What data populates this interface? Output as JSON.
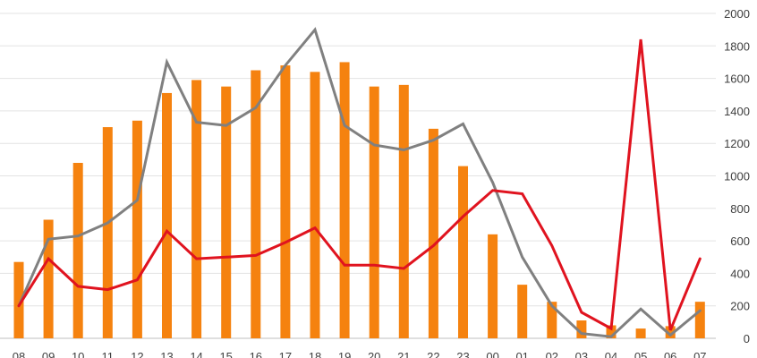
{
  "chart_data": {
    "type": "bar",
    "categories": [
      "08",
      "09",
      "10",
      "11",
      "12",
      "13",
      "14",
      "15",
      "16",
      "17",
      "18",
      "19",
      "20",
      "21",
      "22",
      "23",
      "00",
      "01",
      "02",
      "03",
      "04",
      "05",
      "06",
      "07"
    ],
    "series": [
      {
        "type": "bar",
        "color": "#f5820f",
        "values": [
          470,
          730,
          1080,
          1300,
          1340,
          1510,
          1590,
          1550,
          1650,
          1680,
          1640,
          1700,
          1550,
          1560,
          1290,
          1060,
          640,
          330,
          225,
          110,
          80,
          60,
          75,
          225
        ]
      },
      {
        "type": "line",
        "color": "#808080",
        "values": [
          200,
          610,
          630,
          710,
          850,
          1700,
          1330,
          1310,
          1420,
          1680,
          1900,
          1310,
          1190,
          1160,
          1220,
          1320,
          960,
          500,
          200,
          30,
          10,
          180,
          20,
          170
        ]
      },
      {
        "type": "line",
        "color": "#e0131f",
        "values": [
          200,
          490,
          320,
          300,
          360,
          660,
          490,
          500,
          510,
          590,
          680,
          450,
          450,
          430,
          570,
          750,
          910,
          890,
          570,
          160,
          60,
          1840,
          50,
          490
        ]
      }
    ],
    "y_axis": {
      "min": 0,
      "max": 2000,
      "ticks": [
        "0",
        "200",
        "400",
        "600",
        "800",
        "1000",
        "1200",
        "1400",
        "1600",
        "1800",
        "2000"
      ],
      "position": "right"
    },
    "grid": true
  }
}
